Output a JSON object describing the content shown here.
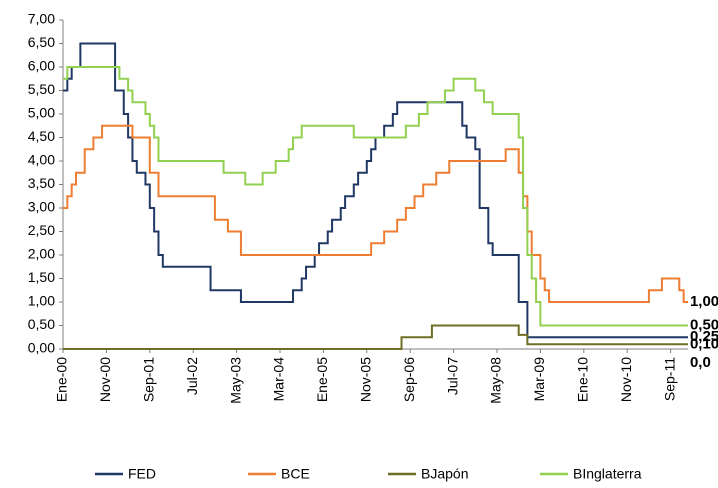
{
  "chart_data": {
    "type": "step-line",
    "categories": [
      "Ene-00",
      null,
      null,
      null,
      null,
      null,
      null,
      null,
      null,
      null,
      "Nov-00",
      null,
      null,
      null,
      null,
      null,
      null,
      null,
      null,
      null,
      "Sep-01",
      null,
      null,
      null,
      null,
      null,
      null,
      null,
      null,
      null,
      "Jul-02",
      null,
      null,
      null,
      null,
      null,
      null,
      null,
      null,
      null,
      "May-03",
      null,
      null,
      null,
      null,
      null,
      null,
      null,
      null,
      null,
      "Mar-04",
      null,
      null,
      null,
      null,
      null,
      null,
      null,
      null,
      null,
      "Ene-05",
      null,
      null,
      null,
      null,
      null,
      null,
      null,
      null,
      null,
      "Nov-05",
      null,
      null,
      null,
      null,
      null,
      null,
      null,
      null,
      null,
      "Sep-06",
      null,
      null,
      null,
      null,
      null,
      null,
      null,
      null,
      null,
      "Jul-07",
      null,
      null,
      null,
      null,
      null,
      null,
      null,
      null,
      null,
      "May-08",
      null,
      null,
      null,
      null,
      null,
      null,
      null,
      null,
      null,
      "Mar-09",
      null,
      null,
      null,
      null,
      null,
      null,
      null,
      null,
      null,
      "Ene-10",
      null,
      null,
      null,
      null,
      null,
      null,
      null,
      null,
      null,
      "Nov-10",
      null,
      null,
      null,
      null,
      null,
      null,
      null,
      null,
      null,
      "Sep-11",
      null,
      null,
      null
    ],
    "series": [
      {
        "name": "FED",
        "color": "#1f3864",
        "end_label": "0,25",
        "values": [
          5.5,
          5.75,
          6,
          6,
          6.5,
          6.5,
          6.5,
          6.5,
          6.5,
          6.5,
          6.5,
          6.5,
          5.5,
          5.5,
          5,
          4.5,
          4,
          3.75,
          3.75,
          3.5,
          3,
          2.5,
          2,
          1.75,
          1.75,
          1.75,
          1.75,
          1.75,
          1.75,
          1.75,
          1.75,
          1.75,
          1.75,
          1.75,
          1.25,
          1.25,
          1.25,
          1.25,
          1.25,
          1.25,
          1.25,
          1,
          1,
          1,
          1,
          1,
          1,
          1,
          1,
          1,
          1,
          1,
          1,
          1.25,
          1.25,
          1.5,
          1.75,
          1.75,
          2,
          2.25,
          2.25,
          2.5,
          2.75,
          2.75,
          3,
          3.25,
          3.25,
          3.5,
          3.75,
          3.75,
          4,
          4.25,
          4.5,
          4.5,
          4.75,
          4.75,
          5,
          5.25,
          5.25,
          5.25,
          5.25,
          5.25,
          5.25,
          5.25,
          5.25,
          5.25,
          5.25,
          5.25,
          5.25,
          5.25,
          5.25,
          5.25,
          4.75,
          4.5,
          4.5,
          4.25,
          3,
          3,
          2.25,
          2,
          2,
          2,
          2,
          2,
          2,
          1,
          1,
          0.25,
          0.25,
          0.25,
          0.25,
          0.25,
          0.25,
          0.25,
          0.25,
          0.25,
          0.25,
          0.25,
          0.25,
          0.25,
          0.25,
          0.25,
          0.25,
          0.25,
          0.25,
          0.25,
          0.25,
          0.25,
          0.25,
          0.25,
          0.25,
          0.25,
          0.25,
          0.25,
          0.25,
          0.25,
          0.25,
          0.25,
          0.25,
          0.25,
          0.25,
          0.25,
          0.25,
          0.25
        ]
      },
      {
        "name": "BCE",
        "color": "#ed7d31",
        "end_label": "1,00",
        "values": [
          3,
          3.25,
          3.5,
          3.75,
          3.75,
          4.25,
          4.25,
          4.5,
          4.5,
          4.75,
          4.75,
          4.75,
          4.75,
          4.75,
          4.75,
          4.75,
          4.5,
          4.5,
          4.5,
          4.5,
          3.75,
          3.75,
          3.25,
          3.25,
          3.25,
          3.25,
          3.25,
          3.25,
          3.25,
          3.25,
          3.25,
          3.25,
          3.25,
          3.25,
          3.25,
          2.75,
          2.75,
          2.75,
          2.5,
          2.5,
          2.5,
          2,
          2,
          2,
          2,
          2,
          2,
          2,
          2,
          2,
          2,
          2,
          2,
          2,
          2,
          2,
          2,
          2,
          2,
          2,
          2,
          2,
          2,
          2,
          2,
          2,
          2,
          2,
          2,
          2,
          2,
          2.25,
          2.25,
          2.25,
          2.5,
          2.5,
          2.5,
          2.75,
          2.75,
          3,
          3,
          3.25,
          3.25,
          3.5,
          3.5,
          3.5,
          3.75,
          3.75,
          3.75,
          4,
          4,
          4,
          4,
          4,
          4,
          4,
          4,
          4,
          4,
          4,
          4,
          4,
          4.25,
          4.25,
          4.25,
          3.75,
          3.25,
          2.5,
          2,
          2,
          1.5,
          1.25,
          1,
          1,
          1,
          1,
          1,
          1,
          1,
          1,
          1,
          1,
          1,
          1,
          1,
          1,
          1,
          1,
          1,
          1,
          1,
          1,
          1,
          1,
          1,
          1.25,
          1.25,
          1.25,
          1.5,
          1.5,
          1.5,
          1.5,
          1.25,
          1
        ]
      },
      {
        "name": "BJapón",
        "color": "#6e6e25",
        "end_label": "0,10",
        "values": [
          0,
          0,
          0,
          0,
          0,
          0,
          0,
          0,
          0,
          0,
          0,
          0,
          0,
          0,
          0,
          0,
          0,
          0,
          0,
          0,
          0,
          0,
          0,
          0,
          0,
          0,
          0,
          0,
          0,
          0,
          0,
          0,
          0,
          0,
          0,
          0,
          0,
          0,
          0,
          0,
          0,
          0,
          0,
          0,
          0,
          0,
          0,
          0,
          0,
          0,
          0,
          0,
          0,
          0,
          0,
          0,
          0,
          0,
          0,
          0,
          0,
          0,
          0,
          0,
          0,
          0,
          0,
          0,
          0,
          0,
          0,
          0,
          0,
          0,
          0,
          0,
          0,
          0,
          0.25,
          0.25,
          0.25,
          0.25,
          0.25,
          0.25,
          0.25,
          0.5,
          0.5,
          0.5,
          0.5,
          0.5,
          0.5,
          0.5,
          0.5,
          0.5,
          0.5,
          0.5,
          0.5,
          0.5,
          0.5,
          0.5,
          0.5,
          0.5,
          0.5,
          0.5,
          0.5,
          0.3,
          0.3,
          0.1,
          0.1,
          0.1,
          0.1,
          0.1,
          0.1,
          0.1,
          0.1,
          0.1,
          0.1,
          0.1,
          0.1,
          0.1,
          0.1,
          0.1,
          0.1,
          0.1,
          0.1,
          0.1,
          0.1,
          0.1,
          0.1,
          0.1,
          0.1,
          0.1,
          0.1,
          0.1,
          0.1,
          0.1,
          0.1,
          0.1,
          0.1,
          0.1,
          0.1,
          0.1,
          0.1,
          0.1
        ]
      },
      {
        "name": "BInglaterra",
        "color": "#92d050",
        "end_label": "0,50",
        "values": [
          5.75,
          6,
          6,
          6,
          6,
          6,
          6,
          6,
          6,
          6,
          6,
          6,
          6,
          5.75,
          5.75,
          5.5,
          5.25,
          5.25,
          5.25,
          5,
          4.75,
          4.5,
          4,
          4,
          4,
          4,
          4,
          4,
          4,
          4,
          4,
          4,
          4,
          4,
          4,
          4,
          4,
          3.75,
          3.75,
          3.75,
          3.75,
          3.75,
          3.5,
          3.5,
          3.5,
          3.5,
          3.75,
          3.75,
          3.75,
          4,
          4,
          4,
          4.25,
          4.5,
          4.5,
          4.75,
          4.75,
          4.75,
          4.75,
          4.75,
          4.75,
          4.75,
          4.75,
          4.75,
          4.75,
          4.75,
          4.75,
          4.5,
          4.5,
          4.5,
          4.5,
          4.5,
          4.5,
          4.5,
          4.5,
          4.5,
          4.5,
          4.5,
          4.5,
          4.75,
          4.75,
          4.75,
          5,
          5,
          5.25,
          5.25,
          5.25,
          5.25,
          5.5,
          5.5,
          5.75,
          5.75,
          5.75,
          5.75,
          5.75,
          5.5,
          5.5,
          5.25,
          5.25,
          5,
          5,
          5,
          5,
          5,
          5,
          4.5,
          3,
          2,
          1.5,
          1,
          0.5,
          0.5,
          0.5,
          0.5,
          0.5,
          0.5,
          0.5,
          0.5,
          0.5,
          0.5,
          0.5,
          0.5,
          0.5,
          0.5,
          0.5,
          0.5,
          0.5,
          0.5,
          0.5,
          0.5,
          0.5,
          0.5,
          0.5,
          0.5,
          0.5,
          0.5,
          0.5,
          0.5,
          0.5,
          0.5,
          0.5,
          0.5,
          0.5,
          0.5
        ]
      }
    ],
    "annotations": [
      "0,0"
    ],
    "ylim": [
      0,
      7
    ],
    "yticks": [
      {
        "value": 0,
        "label": "0,00"
      },
      {
        "value": 0.5,
        "label": "0,50"
      },
      {
        "value": 1,
        "label": "1,00"
      },
      {
        "value": 1.5,
        "label": "1,50"
      },
      {
        "value": 2,
        "label": "2,00"
      },
      {
        "value": 2.5,
        "label": "2,50"
      },
      {
        "value": 3,
        "label": "3,00"
      },
      {
        "value": 3.5,
        "label": "3,50"
      },
      {
        "value": 4,
        "label": "4,00"
      },
      {
        "value": 4.5,
        "label": "4,50"
      },
      {
        "value": 5,
        "label": "5,00"
      },
      {
        "value": 5.5,
        "label": "5,50"
      },
      {
        "value": 6,
        "label": "6,00"
      },
      {
        "value": 6.5,
        "label": "6,50"
      },
      {
        "value": 7,
        "label": "7,00"
      }
    ],
    "grid": false,
    "legend": "bottom"
  }
}
